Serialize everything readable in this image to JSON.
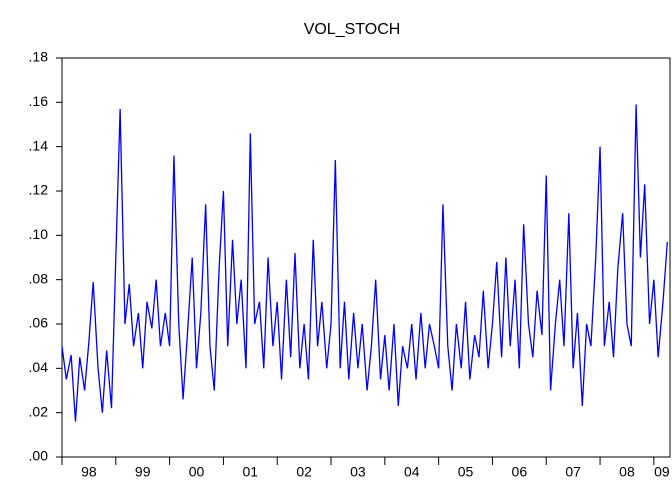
{
  "chart_data": {
    "type": "line",
    "title": "VOL_STOCH",
    "x": [
      1998.0,
      1998.08,
      1998.17,
      1998.25,
      1998.33,
      1998.42,
      1998.5,
      1998.58,
      1998.67,
      1998.75,
      1998.83,
      1998.92,
      1999.0,
      1999.08,
      1999.17,
      1999.25,
      1999.33,
      1999.42,
      1999.5,
      1999.58,
      1999.67,
      1999.75,
      1999.83,
      1999.92,
      2000.0,
      2000.08,
      2000.17,
      2000.25,
      2000.33,
      2000.42,
      2000.5,
      2000.58,
      2000.67,
      2000.75,
      2000.83,
      2000.92,
      2001.0,
      2001.08,
      2001.17,
      2001.25,
      2001.33,
      2001.42,
      2001.5,
      2001.58,
      2001.67,
      2001.75,
      2001.83,
      2001.92,
      2002.0,
      2002.08,
      2002.17,
      2002.25,
      2002.33,
      2002.42,
      2002.5,
      2002.58,
      2002.67,
      2002.75,
      2002.83,
      2002.92,
      2003.0,
      2003.08,
      2003.17,
      2003.25,
      2003.33,
      2003.42,
      2003.5,
      2003.58,
      2003.67,
      2003.75,
      2003.83,
      2003.92,
      2004.0,
      2004.08,
      2004.17,
      2004.25,
      2004.33,
      2004.42,
      2004.5,
      2004.58,
      2004.67,
      2004.75,
      2004.83,
      2004.92,
      2005.0,
      2005.08,
      2005.17,
      2005.25,
      2005.33,
      2005.42,
      2005.5,
      2005.58,
      2005.67,
      2005.75,
      2005.83,
      2005.92,
      2006.0,
      2006.08,
      2006.17,
      2006.25,
      2006.33,
      2006.42,
      2006.5,
      2006.58,
      2006.67,
      2006.75,
      2006.83,
      2006.92,
      2007.0,
      2007.08,
      2007.17,
      2007.25,
      2007.33,
      2007.42,
      2007.5,
      2007.58,
      2007.67,
      2007.75,
      2007.83,
      2007.92,
      2008.0,
      2008.08,
      2008.17,
      2008.25,
      2008.33,
      2008.42,
      2008.5,
      2008.58,
      2008.67,
      2008.75,
      2008.83,
      2008.92,
      2009.0,
      2009.08,
      2009.17,
      2009.25
    ],
    "series": [
      {
        "color": "#0000ff",
        "values": [
          0.05,
          0.035,
          0.046,
          0.016,
          0.045,
          0.03,
          0.052,
          0.079,
          0.04,
          0.02,
          0.048,
          0.022,
          0.09,
          0.157,
          0.06,
          0.078,
          0.05,
          0.065,
          0.04,
          0.07,
          0.058,
          0.08,
          0.05,
          0.065,
          0.05,
          0.136,
          0.06,
          0.026,
          0.055,
          0.09,
          0.04,
          0.065,
          0.114,
          0.05,
          0.03,
          0.085,
          0.12,
          0.05,
          0.098,
          0.06,
          0.08,
          0.04,
          0.146,
          0.06,
          0.07,
          0.04,
          0.09,
          0.05,
          0.07,
          0.035,
          0.08,
          0.045,
          0.092,
          0.04,
          0.06,
          0.035,
          0.098,
          0.05,
          0.07,
          0.04,
          0.06,
          0.134,
          0.04,
          0.07,
          0.035,
          0.065,
          0.04,
          0.06,
          0.03,
          0.05,
          0.08,
          0.035,
          0.055,
          0.03,
          0.06,
          0.023,
          0.05,
          0.04,
          0.06,
          0.035,
          0.065,
          0.04,
          0.06,
          0.05,
          0.04,
          0.114,
          0.05,
          0.03,
          0.06,
          0.04,
          0.07,
          0.035,
          0.055,
          0.045,
          0.075,
          0.04,
          0.06,
          0.088,
          0.045,
          0.09,
          0.05,
          0.08,
          0.04,
          0.105,
          0.06,
          0.045,
          0.075,
          0.055,
          0.127,
          0.03,
          0.06,
          0.08,
          0.05,
          0.11,
          0.04,
          0.065,
          0.023,
          0.06,
          0.05,
          0.09,
          0.14,
          0.05,
          0.07,
          0.045,
          0.085,
          0.11,
          0.06,
          0.05,
          0.159,
          0.09,
          0.123,
          0.06,
          0.08,
          0.045,
          0.07,
          0.097
        ]
      }
    ],
    "xlim": [
      1998,
      2009.3
    ],
    "xticks": [
      {
        "value": 1998,
        "label": "98"
      },
      {
        "value": 1999,
        "label": "99"
      },
      {
        "value": 2000,
        "label": "00"
      },
      {
        "value": 2001,
        "label": "01"
      },
      {
        "value": 2002,
        "label": "02"
      },
      {
        "value": 2003,
        "label": "03"
      },
      {
        "value": 2004,
        "label": "04"
      },
      {
        "value": 2005,
        "label": "05"
      },
      {
        "value": 2006,
        "label": "06"
      },
      {
        "value": 2007,
        "label": "07"
      },
      {
        "value": 2008,
        "label": "08"
      },
      {
        "value": 2009,
        "label": "09"
      }
    ],
    "ylim": [
      0,
      0.18
    ],
    "yticks": [
      {
        "value": 0,
        "label": ".00"
      },
      {
        "value": 0.02,
        "label": ".02"
      },
      {
        "value": 0.04,
        "label": ".04"
      },
      {
        "value": 0.06,
        "label": ".06"
      },
      {
        "value": 0.08,
        "label": ".08"
      },
      {
        "value": 0.1,
        "label": ".10"
      },
      {
        "value": 0.12,
        "label": ".12"
      },
      {
        "value": 0.14,
        "label": ".14"
      },
      {
        "value": 0.16,
        "label": ".16"
      },
      {
        "value": 0.18,
        "label": ".18"
      }
    ]
  }
}
